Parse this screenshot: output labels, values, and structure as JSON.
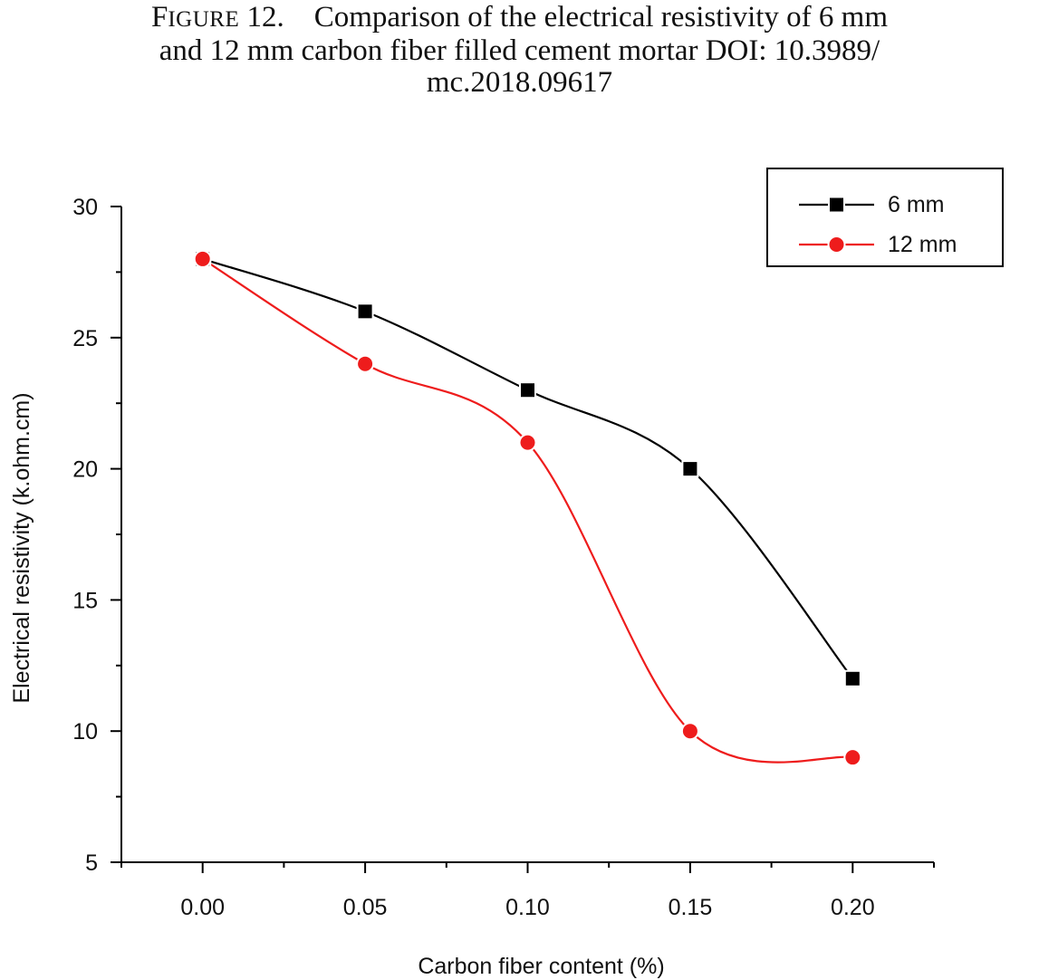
{
  "figure": {
    "label_first": "F",
    "label_rest": "IGURE",
    "number": "12.",
    "text_line1": "Comparison of the electrical resistivity of 6 mm",
    "text_line2": "and 12 mm carbon fiber filled cement mortar DOI: 10.3989/",
    "text_line3": "mc.2018.09617"
  },
  "chart_data": {
    "type": "line",
    "xlabel": "Carbon fiber content (%)",
    "ylabel": "Electrical resistivity (k.ohm.cm)",
    "x": [
      0.0,
      0.05,
      0.1,
      0.15,
      0.2
    ],
    "xticks": [
      "0.00",
      "0.05",
      "0.10",
      "0.15",
      "0.20"
    ],
    "yticks": [
      "5",
      "10",
      "15",
      "20",
      "25",
      "30"
    ],
    "xlim": [
      -0.025,
      0.225
    ],
    "ylim": [
      5,
      30
    ],
    "legend_position": "top-right",
    "grid": false,
    "smooth": true,
    "series": [
      {
        "name": "6 mm",
        "values": [
          28,
          26,
          23,
          20,
          12
        ],
        "color": "#000000",
        "marker": "square"
      },
      {
        "name": "12 mm",
        "values": [
          28,
          24,
          21,
          10,
          9
        ],
        "color": "#ee1c1c",
        "marker": "circle"
      }
    ]
  }
}
